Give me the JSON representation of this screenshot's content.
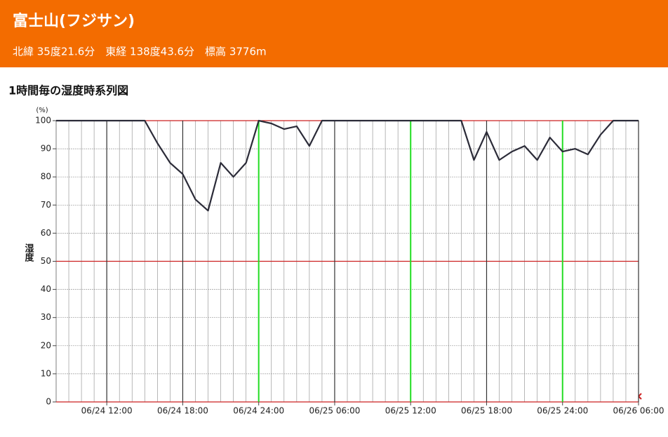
{
  "header": {
    "title": "富士山(フジサン)",
    "subtitle": "北緯 35度21.6分　東経 138度43.6分　標高 3776m"
  },
  "chart_data": {
    "type": "line",
    "title": "1時間毎の湿度時系列図",
    "ylabel": "湿度",
    "y_unit": "(%)",
    "x": [
      0,
      1,
      2,
      3,
      4,
      5,
      6,
      7,
      8,
      9,
      10,
      11,
      12,
      13,
      14,
      15,
      16,
      17,
      18,
      19,
      20,
      21,
      22,
      23,
      24,
      25,
      26,
      27,
      28,
      29,
      30,
      31,
      32,
      33,
      34,
      35,
      36,
      37,
      38,
      39,
      40,
      41,
      42,
      43,
      44,
      45,
      46
    ],
    "series": [
      {
        "name": "湿度",
        "color": "#2b2b38",
        "values": [
          100,
          100,
          100,
          100,
          100,
          100,
          100,
          100,
          92,
          85,
          81,
          72,
          68,
          85,
          80,
          85,
          100,
          99,
          97,
          98,
          91,
          100,
          100,
          100,
          100,
          100,
          100,
          100,
          100,
          100,
          100,
          100,
          100,
          86,
          96,
          86,
          89,
          91,
          86,
          94,
          89,
          90,
          88,
          95,
          100,
          100,
          100
        ]
      }
    ],
    "xlim": [
      0,
      46
    ],
    "xticks": [
      {
        "value": 4,
        "label": "06/24 12:00"
      },
      {
        "value": 10,
        "label": "06/24 18:00"
      },
      {
        "value": 16,
        "label": "06/24 24:00"
      },
      {
        "value": 22,
        "label": "06/25 06:00"
      },
      {
        "value": 28,
        "label": "06/25 12:00"
      },
      {
        "value": 34,
        "label": "06/25 18:00"
      },
      {
        "value": 40,
        "label": "06/25 24:00"
      },
      {
        "value": 46,
        "label": "06/26 06:00"
      }
    ],
    "highlight_x": [
      16,
      28,
      40
    ],
    "highlight_color": "#22dd22",
    "ylim": [
      0,
      100
    ],
    "yticks": [
      0,
      10,
      20,
      30,
      40,
      50,
      60,
      70,
      80,
      90,
      100
    ],
    "emphasis_y": [
      0,
      50,
      100
    ],
    "emphasis_color": "#cc2222",
    "grid": true
  }
}
